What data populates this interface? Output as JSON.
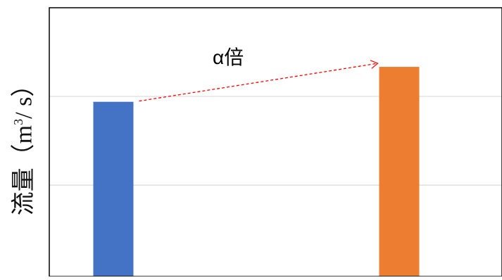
{
  "chart_data": {
    "type": "bar",
    "categories": [
      "",
      ""
    ],
    "values": [
      65,
      78
    ],
    "colors": [
      "#4472C4",
      "#ED7D31"
    ],
    "ylim": [
      0,
      100
    ],
    "yticks": [
      34,
      67,
      100
    ],
    "grid": true,
    "title": "",
    "xlabel": "",
    "ylabel": {
      "main": "流量（m",
      "sup": "3",
      "tail": "/ s）"
    },
    "annotation": {
      "text": "α倍",
      "style": "dashed-arrow",
      "color": "#FF0000"
    }
  }
}
